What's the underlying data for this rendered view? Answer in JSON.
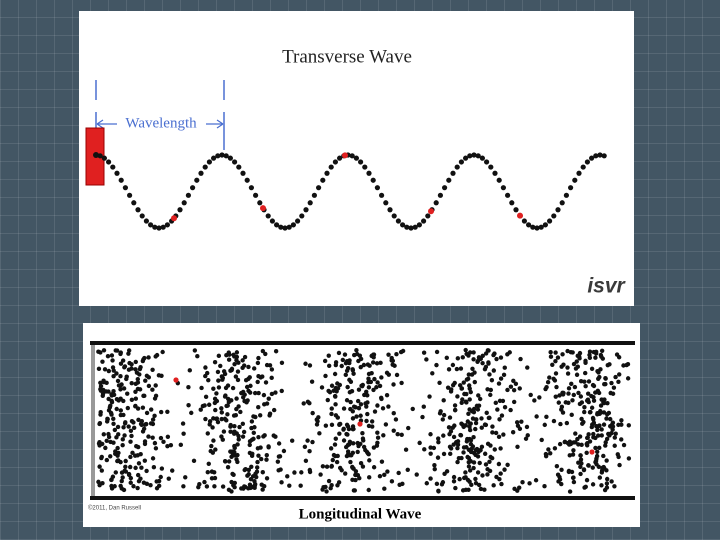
{
  "top_panel": {
    "title": "Transverse Wave",
    "wavelength_label": "Wavelength",
    "logo": "isvr"
  },
  "bottom_panel": {
    "credit": "©2011, Dan Russell",
    "caption": "Longitudinal Wave"
  }
}
